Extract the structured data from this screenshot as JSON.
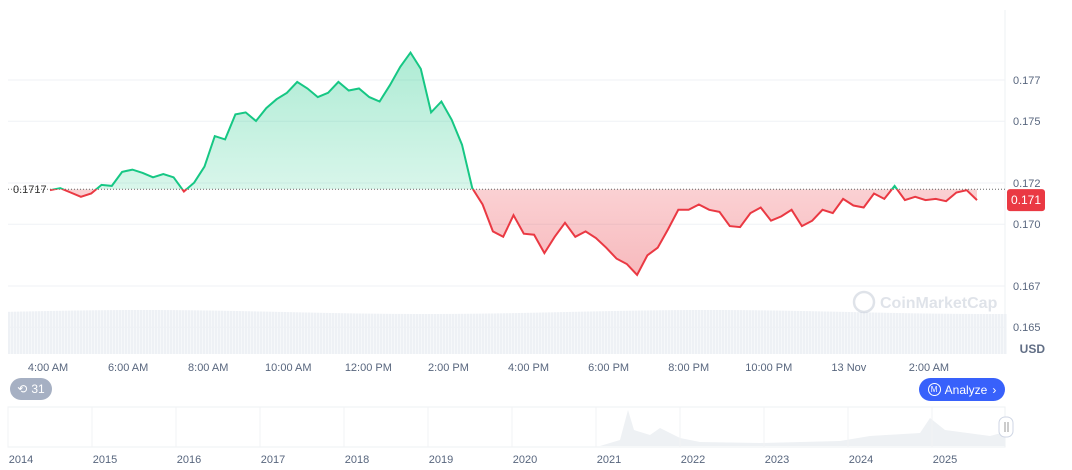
{
  "chart_data": {
    "type": "area",
    "title": "",
    "currency_label": "USD",
    "baseline": 0.1717,
    "baseline_label": "0.1717",
    "current_price_label": "0.171",
    "y_ticks": [
      0.177,
      0.175,
      0.172,
      0.17,
      0.167,
      0.165
    ],
    "y_tick_labels": [
      "0.177",
      "0.175",
      "0.172",
      "0.170",
      "0.167",
      "0.165"
    ],
    "ylim": [
      0.1637,
      0.1804
    ],
    "x_ticks_hours": [
      4,
      6,
      8,
      10,
      12,
      14,
      16,
      18,
      20,
      22,
      24,
      26
    ],
    "x_tick_labels": [
      "4:00 AM",
      "6:00 AM",
      "8:00 AM",
      "10:00 AM",
      "12:00 PM",
      "2:00 PM",
      "4:00 PM",
      "6:00 PM",
      "8:00 PM",
      "10:00 PM",
      "13 Nov",
      "2:00 AM"
    ],
    "xlim_hours": [
      3.0,
      27.9
    ],
    "series_start_hour": 4.05,
    "series_end_hour": 27.2,
    "prices": [
      0.17165,
      0.17175,
      0.17154,
      0.17133,
      0.17149,
      0.17191,
      0.17186,
      0.17254,
      0.17265,
      0.17249,
      0.17228,
      0.17244,
      0.17228,
      0.17159,
      0.17202,
      0.1728,
      0.17428,
      0.17412,
      0.17533,
      0.17543,
      0.17501,
      0.17564,
      0.17607,
      0.17638,
      0.17691,
      0.17659,
      0.17617,
      0.17638,
      0.17691,
      0.17649,
      0.17659,
      0.17617,
      0.17596,
      0.17675,
      0.17764,
      0.17833,
      0.17754,
      0.17543,
      0.17596,
      0.17507,
      0.17386,
      0.17175,
      0.17096,
      0.16965,
      0.16939,
      0.17044,
      0.16954,
      0.16949,
      0.1686,
      0.16939,
      0.17007,
      0.16939,
      0.16965,
      0.16933,
      0.16886,
      0.16833,
      0.16807,
      0.16754,
      0.16849,
      0.16886,
      0.16975,
      0.1707,
      0.1707,
      0.17096,
      0.1707,
      0.1706,
      0.16991,
      0.16986,
      0.17054,
      0.17081,
      0.17017,
      0.17038,
      0.1707,
      0.16991,
      0.17017,
      0.1707,
      0.17054,
      0.17123,
      0.17091,
      0.17081,
      0.17149,
      0.17123,
      0.17186,
      0.17117,
      0.17133,
      0.17117,
      0.17123,
      0.17112,
      0.17154,
      0.17165,
      0.17117
    ],
    "navigator_years": [
      "2014",
      "2015",
      "2016",
      "2017",
      "2018",
      "2019",
      "2020",
      "2021",
      "2022",
      "2023",
      "2024",
      "2025"
    ]
  },
  "controls": {
    "history_badge": "31",
    "analyze_label": "Analyze"
  },
  "watermark": "CoinMarketCap",
  "colors": {
    "up": "#16c784",
    "down": "#ea3943",
    "accent": "#3861fb"
  }
}
